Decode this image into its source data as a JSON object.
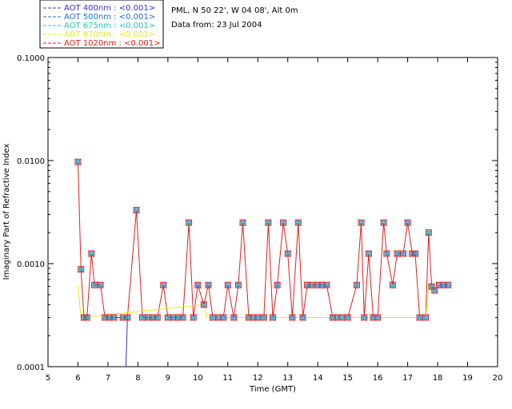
{
  "header": {
    "site_line": "PML, N 50 22', W 04 08', Alt 0m",
    "date_line": "Data from: 23 Jul 2004"
  },
  "legend": [
    {
      "label": "AOT  400nm : <0.001>",
      "color": "#3b2fd0"
    },
    {
      "label": "AOT  500nm : <0.001>",
      "color": "#1f6fd8"
    },
    {
      "label": "AOT  675nm : <0.001>",
      "color": "#22c9b4"
    },
    {
      "label": "AOT  870nm : <0.001>",
      "color": "#e8e81a"
    },
    {
      "label": "AOT 1020nm : <0.001>",
      "color": "#e02020"
    }
  ],
  "chart_data": {
    "type": "line",
    "xlabel": "Time (GMT)",
    "ylabel": "Imaginary Part of Refractive Index",
    "xlim": [
      5,
      20
    ],
    "ylim": [
      0.0001,
      0.1
    ],
    "yscale": "log",
    "x_ticks": [
      "5",
      "6",
      "7",
      "8",
      "9",
      "10",
      "11",
      "12",
      "13",
      "14",
      "15",
      "16",
      "17",
      "18",
      "19",
      "20"
    ],
    "y_ticks": [
      "0.0001",
      "0.0010",
      "0.0100",
      "0.1000"
    ],
    "series": [
      {
        "name": "AOT 1020nm",
        "color": "#e02020",
        "points": [
          [
            6.0,
            0.0097
          ],
          [
            6.1,
            0.00088
          ],
          [
            6.2,
            0.0003
          ],
          [
            6.3,
            0.0003
          ],
          [
            6.45,
            0.00125
          ],
          [
            6.55,
            0.00062
          ],
          [
            6.75,
            0.00062
          ],
          [
            6.9,
            0.0003
          ],
          [
            7.05,
            0.0003
          ],
          [
            7.2,
            0.0003
          ],
          [
            7.5,
            0.0003
          ],
          [
            7.65,
            0.0003
          ],
          [
            7.95,
            0.0033
          ],
          [
            8.15,
            0.0003
          ],
          [
            8.35,
            0.0003
          ],
          [
            8.5,
            0.0003
          ],
          [
            8.65,
            0.0003
          ],
          [
            8.85,
            0.00062
          ],
          [
            9.0,
            0.0003
          ],
          [
            9.2,
            0.0003
          ],
          [
            9.35,
            0.0003
          ],
          [
            9.5,
            0.0003
          ],
          [
            9.7,
            0.0025
          ],
          [
            9.85,
            0.0003
          ],
          [
            10.0,
            0.00062
          ],
          [
            10.2,
            0.0004
          ],
          [
            10.35,
            0.00062
          ],
          [
            10.5,
            0.0003
          ],
          [
            10.7,
            0.0003
          ],
          [
            10.85,
            0.0003
          ],
          [
            11.0,
            0.00062
          ],
          [
            11.2,
            0.0003
          ],
          [
            11.35,
            0.00062
          ],
          [
            11.5,
            0.0025
          ],
          [
            11.7,
            0.0003
          ],
          [
            11.85,
            0.0003
          ],
          [
            12.0,
            0.0003
          ],
          [
            12.2,
            0.0003
          ],
          [
            12.35,
            0.0025
          ],
          [
            12.5,
            0.0003
          ],
          [
            12.65,
            0.00062
          ],
          [
            12.85,
            0.0025
          ],
          [
            13.0,
            0.00125
          ],
          [
            13.15,
            0.0003
          ],
          [
            13.35,
            0.0025
          ],
          [
            13.5,
            0.0003
          ],
          [
            13.65,
            0.00062
          ],
          [
            13.8,
            0.00062
          ],
          [
            14.0,
            0.00062
          ],
          [
            14.15,
            0.00062
          ],
          [
            14.3,
            0.00062
          ],
          [
            14.5,
            0.0003
          ],
          [
            14.65,
            0.0003
          ],
          [
            14.8,
            0.0003
          ],
          [
            15.0,
            0.0003
          ],
          [
            15.3,
            0.00062
          ],
          [
            15.45,
            0.0025
          ],
          [
            15.55,
            0.0003
          ],
          [
            15.7,
            0.00125
          ],
          [
            15.85,
            0.0003
          ],
          [
            16.0,
            0.0003
          ],
          [
            16.2,
            0.0025
          ],
          [
            16.3,
            0.00125
          ],
          [
            16.5,
            0.00062
          ],
          [
            16.65,
            0.00125
          ],
          [
            16.85,
            0.00125
          ],
          [
            17.0,
            0.0025
          ],
          [
            17.15,
            0.00125
          ],
          [
            17.25,
            0.00125
          ],
          [
            17.4,
            0.0003
          ],
          [
            17.6,
            0.0003
          ],
          [
            17.7,
            0.002
          ],
          [
            17.8,
            0.0006
          ],
          [
            17.9,
            0.00055
          ],
          [
            18.05,
            0.00062
          ],
          [
            18.2,
            0.00062
          ],
          [
            18.35,
            0.00062
          ]
        ]
      },
      {
        "name": "AOT 870nm",
        "color": "#e8e81a",
        "points": [
          [
            6.0,
            0.00062
          ],
          [
            6.1,
            0.0003
          ],
          [
            10.2,
            0.0004
          ],
          [
            10.3,
            0.0003
          ],
          [
            17.6,
            0.0003
          ],
          [
            17.7,
            0.00062
          ],
          [
            17.8,
            0.00062
          ]
        ]
      },
      {
        "name": "AOT 400nm",
        "color": "#3b2fd0",
        "points": [
          [
            7.6,
            0.0001
          ],
          [
            7.65,
            0.0003
          ]
        ]
      }
    ]
  }
}
